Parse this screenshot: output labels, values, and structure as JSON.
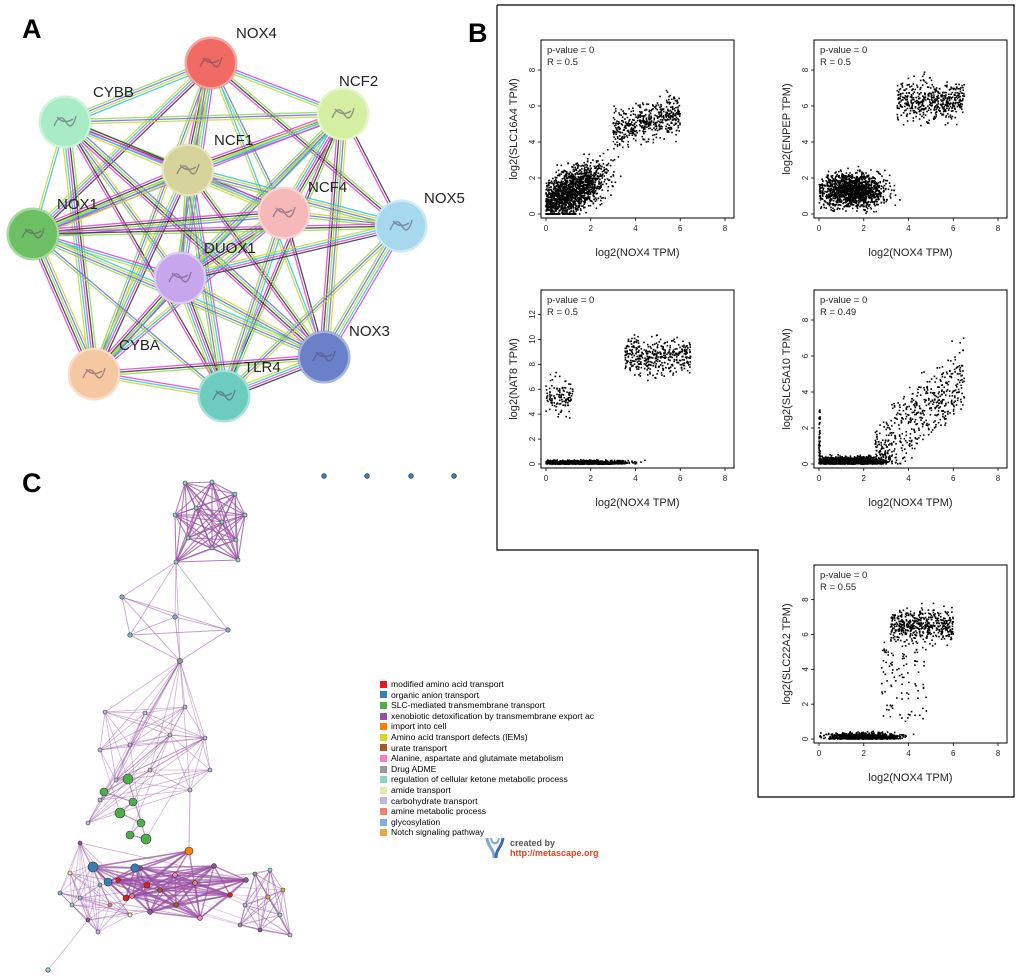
{
  "panels": {
    "a": "A",
    "b": "B",
    "c": "C"
  },
  "network": {
    "nodes": [
      {
        "label": "NOX4",
        "color": "#f06b63"
      },
      {
        "label": "NCF2",
        "color": "#d4eea2"
      },
      {
        "label": "CYBB",
        "color": "#a8ecc6"
      },
      {
        "label": "NCF1",
        "color": "#d6d49a"
      },
      {
        "label": "NCF4",
        "color": "#f6b8b8"
      },
      {
        "label": "NOX5",
        "color": "#a6d8ee"
      },
      {
        "label": "NOX1",
        "color": "#6cc063"
      },
      {
        "label": "DUOX1",
        "color": "#c7a6ee"
      },
      {
        "label": "NOX3",
        "color": "#6a80c8"
      },
      {
        "label": "CYBA",
        "color": "#f6c8a2"
      },
      {
        "label": "TLR4",
        "color": "#6cccbe"
      }
    ],
    "edge_colors": [
      "#333333",
      "#e23dd8",
      "#28c4e8",
      "#c8d82a",
      "#6a6ae8",
      "#8fd84a"
    ]
  },
  "chart_data": [
    {
      "type": "scatter",
      "title": "",
      "pvalue_text": "p-value = 0",
      "r_text": "R = 0.5",
      "xlabel": "log2(NOX4 TPM)",
      "ylabel": "log2(SLC16A4 TPM)",
      "xlim": [
        0,
        8
      ],
      "ylim": [
        0,
        9
      ],
      "xticks": [
        0,
        2,
        4,
        6,
        8
      ],
      "yticks": [
        0,
        2,
        4,
        6,
        8
      ],
      "pattern": "broad"
    },
    {
      "type": "scatter",
      "title": "",
      "pvalue_text": "p-value = 0",
      "r_text": "R = 0.5",
      "xlabel": "log2(NOX4 TPM)",
      "ylabel": "log2(ENPEP TPM)",
      "xlim": [
        0,
        8
      ],
      "ylim": [
        0,
        9
      ],
      "xticks": [
        0,
        2,
        4,
        6,
        8
      ],
      "yticks": [
        0,
        2,
        4,
        6,
        8
      ],
      "pattern": "broad-high"
    },
    {
      "type": "scatter",
      "title": "",
      "pvalue_text": "p-value = 0",
      "r_text": "R = 0.5",
      "xlabel": "log2(NOX4 TPM)",
      "ylabel": "log2(NAT8 TPM)",
      "xlim": [
        0,
        8
      ],
      "ylim": [
        0,
        13
      ],
      "xticks": [
        0,
        2,
        4,
        6,
        8
      ],
      "yticks": [
        0,
        2,
        4,
        6,
        8,
        10,
        12
      ],
      "pattern": "floor-high"
    },
    {
      "type": "scatter",
      "title": "",
      "pvalue_text": "p-value = 0",
      "r_text": "R = 0.49",
      "xlabel": "log2(NOX4 TPM)",
      "ylabel": "log2(SLC5A10 TPM)",
      "xlim": [
        0,
        8
      ],
      "ylim": [
        0,
        9
      ],
      "xticks": [
        0,
        2,
        4,
        6,
        8
      ],
      "yticks": [
        0,
        2,
        4,
        6,
        8
      ],
      "pattern": "floor-diffuse"
    },
    {
      "type": "scatter",
      "title": "",
      "pvalue_text": "p-value = 0",
      "r_text": "R = 0.55",
      "xlabel": "log2(NOX4 TPM)",
      "ylabel": "log2(SLC22A2 TPM)",
      "xlim": [
        0,
        8
      ],
      "ylim": [
        0,
        9.3
      ],
      "xticks": [
        0,
        2,
        4,
        6,
        8
      ],
      "yticks": [
        0,
        2,
        4,
        6,
        8
      ],
      "pattern": "floor-cluster"
    }
  ],
  "legend": [
    {
      "label": "modified amino acid transport",
      "color": "#e41a1c"
    },
    {
      "label": "organic anion transport",
      "color": "#377eb8"
    },
    {
      "label": "SLC-mediated transmembrane transport",
      "color": "#4daf4a"
    },
    {
      "label": "xenobiotic detoxification by transmembrane export ac",
      "color": "#984ea3"
    },
    {
      "label": "import into cell",
      "color": "#ff7f00"
    },
    {
      "label": "Amino acid transport defects (IEMs)",
      "color": "#d6d62a"
    },
    {
      "label": "urate transport",
      "color": "#a65628"
    },
    {
      "label": "Alanine, aspartate and glutamate metabolism",
      "color": "#f781bf"
    },
    {
      "label": "Drug ADME",
      "color": "#999999"
    },
    {
      "label": "regulation of cellular ketone metabolic process",
      "color": "#8dd3c7"
    },
    {
      "label": "amide transport",
      "color": "#e8e8a8"
    },
    {
      "label": "carbohydrate transport",
      "color": "#bebada"
    },
    {
      "label": "amine metabolic process",
      "color": "#f08070"
    },
    {
      "label": "glycosylation",
      "color": "#80b1d3"
    },
    {
      "label": "Notch signaling pathway",
      "color": "#e8a840"
    }
  ],
  "credit": {
    "created_by": "created by",
    "url": "http://metascape.org"
  }
}
